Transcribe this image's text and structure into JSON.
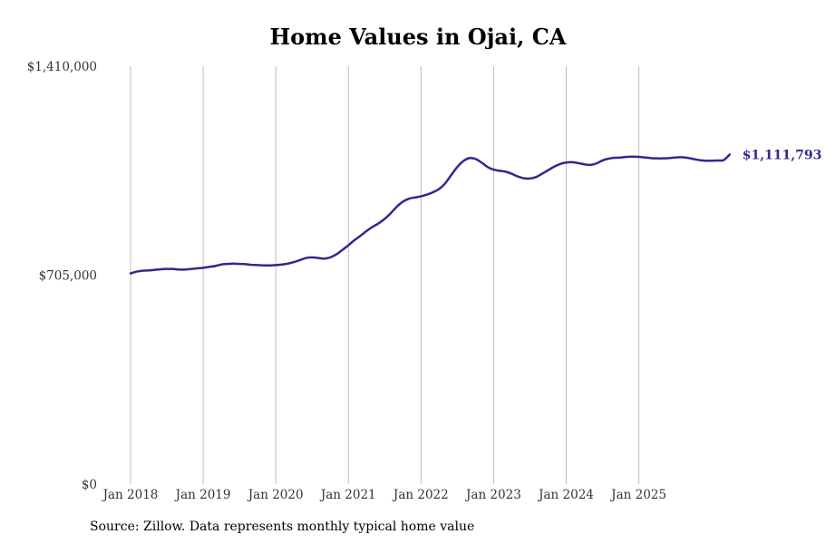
{
  "colors": {
    "line": "#2e2a8c",
    "grid": "#bdbdbd",
    "text": "#333333",
    "background": "#ffffff"
  },
  "source_note": "Source: Zillow. Data represents monthly typical home value",
  "chart_data": {
    "type": "line",
    "title": "Home Values in Ojai, CA",
    "xlabel": "",
    "ylabel": "",
    "ylim": [
      0,
      1410000
    ],
    "yticks": [
      {
        "value": 0,
        "label": "$0"
      },
      {
        "value": 705000,
        "label": "$705,000"
      },
      {
        "value": 1410000,
        "label": "$1,410,000"
      }
    ],
    "xlim": [
      2018.0,
      2025.917
    ],
    "xticks": [
      {
        "value": 2018,
        "label": "Jan 2018"
      },
      {
        "value": 2019,
        "label": "Jan 2019"
      },
      {
        "value": 2020,
        "label": "Jan 2020"
      },
      {
        "value": 2021,
        "label": "Jan 2021"
      },
      {
        "value": 2022,
        "label": "Jan 2022"
      },
      {
        "value": 2023,
        "label": "Jan 2023"
      },
      {
        "value": 2024,
        "label": "Jan 2024"
      },
      {
        "value": 2025,
        "label": "Jan 2025"
      }
    ],
    "grid": "vertical",
    "end_label": "$1,111,793",
    "series": [
      {
        "name": "Typical home value",
        "start": "Jan 2018",
        "frequency": "monthly",
        "values": [
          711000,
          717000,
          720000,
          721000,
          723000,
          725000,
          726000,
          726000,
          724000,
          724000,
          726000,
          728000,
          730000,
          733000,
          736000,
          741000,
          743000,
          744000,
          743000,
          742000,
          740000,
          739000,
          738000,
          738000,
          739000,
          741000,
          744000,
          749000,
          756000,
          763000,
          765000,
          763000,
          761000,
          765000,
          775000,
          790000,
          806000,
          823000,
          838000,
          854000,
          868000,
          880000,
          895000,
          914000,
          936000,
          953000,
          963000,
          967000,
          971000,
          977000,
          985000,
          996000,
          1015000,
          1043000,
          1070000,
          1090000,
          1100000,
          1097000,
          1085000,
          1070000,
          1061000,
          1057000,
          1054000,
          1047000,
          1038000,
          1032000,
          1031000,
          1036000,
          1047000,
          1059000,
          1071000,
          1080000,
          1085000,
          1086000,
          1083000,
          1079000,
          1077000,
          1082000,
          1092000,
          1098000,
          1101000,
          1102000,
          1104000,
          1105000,
          1104000,
          1102000,
          1100000,
          1099000,
          1099000,
          1100000,
          1102000,
          1103000,
          1101000,
          1097000,
          1093000,
          1091000,
          1091000,
          1092000,
          1093000,
          1111793
        ]
      }
    ]
  }
}
